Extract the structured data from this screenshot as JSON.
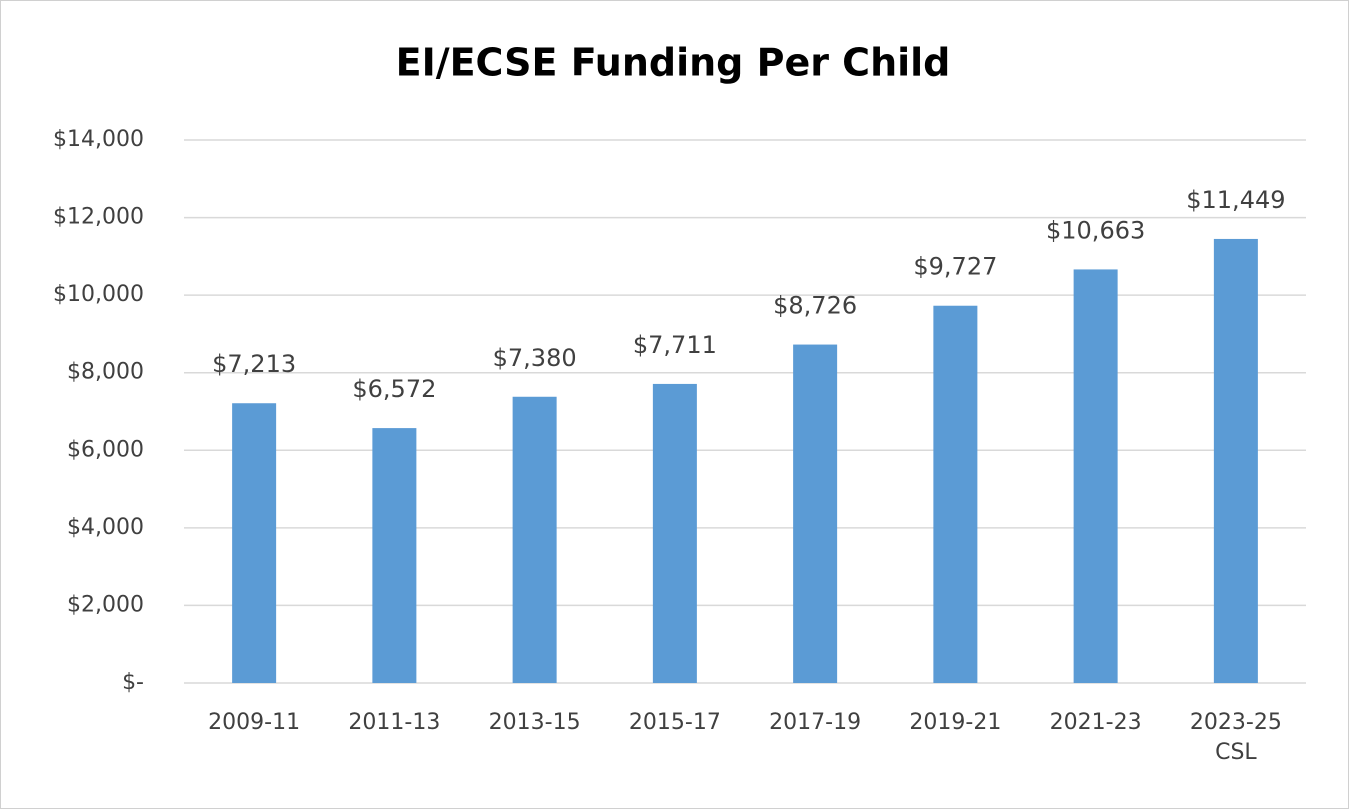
{
  "chart_data": {
    "type": "bar",
    "title": "EI/ECSE Funding Per Child",
    "categories": [
      "2009-11",
      "2011-13",
      "2013-15",
      "2015-17",
      "2017-19",
      "2019-21",
      "2021-23",
      "2023-25 CSL"
    ],
    "values": [
      7213,
      6572,
      7380,
      7711,
      8726,
      9727,
      10663,
      11449
    ],
    "value_labels": [
      "$7,213",
      "$6,572",
      "$7,380",
      "$7,711",
      "$8,726",
      "$9,727",
      "$10,663",
      "$11,449"
    ],
    "color": "#5b9bd5",
    "ylim": [
      0,
      14000
    ],
    "yticks": [
      {
        "value": 0,
        "label": "$-"
      },
      {
        "value": 2000,
        "label": "$2,000"
      },
      {
        "value": 4000,
        "label": "$4,000"
      },
      {
        "value": 6000,
        "label": "$6,000"
      },
      {
        "value": 8000,
        "label": "$8,000"
      },
      {
        "value": 10000,
        "label": "$10,000"
      },
      {
        "value": 12000,
        "label": "$12,000"
      },
      {
        "value": 14000,
        "label": "$14,000"
      }
    ],
    "grid": true
  }
}
